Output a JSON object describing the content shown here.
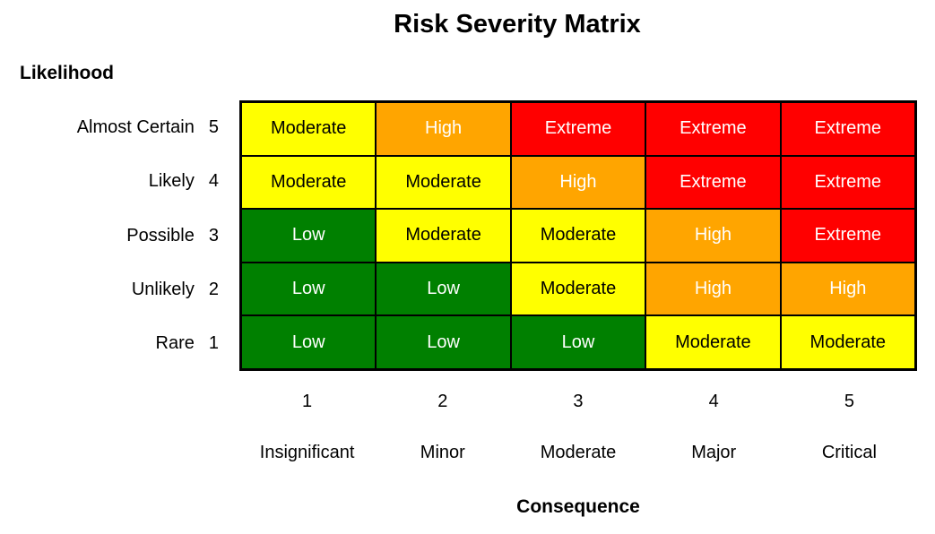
{
  "title": "Risk Severity Matrix",
  "axes": {
    "y_label": "Likelihood",
    "x_label": "Consequence"
  },
  "chart_data": {
    "type": "heatmap",
    "title": "Risk Severity Matrix",
    "xlabel": "Consequence",
    "ylabel": "Likelihood",
    "rows": [
      {
        "likelihood": "Almost Certain",
        "value": 5,
        "cells": [
          "Moderate",
          "High",
          "Extreme",
          "Extreme",
          "Extreme"
        ]
      },
      {
        "likelihood": "Likely",
        "value": 4,
        "cells": [
          "Moderate",
          "Moderate",
          "High",
          "Extreme",
          "Extreme"
        ]
      },
      {
        "likelihood": "Possible",
        "value": 3,
        "cells": [
          "Low",
          "Moderate",
          "Moderate",
          "High",
          "Extreme"
        ]
      },
      {
        "likelihood": "Unlikely",
        "value": 2,
        "cells": [
          "Low",
          "Low",
          "Moderate",
          "High",
          "High"
        ]
      },
      {
        "likelihood": "Rare",
        "value": 1,
        "cells": [
          "Low",
          "Low",
          "Low",
          "Moderate",
          "Moderate"
        ]
      }
    ],
    "columns": [
      {
        "value": 1,
        "label": "Insignificant"
      },
      {
        "value": 2,
        "label": "Minor"
      },
      {
        "value": 3,
        "label": "Moderate"
      },
      {
        "value": 4,
        "label": "Major"
      },
      {
        "value": 5,
        "label": "Critical"
      }
    ],
    "severity_colors": {
      "Low": {
        "bg": "#008000",
        "text": "#FFFFFF"
      },
      "Moderate": {
        "bg": "#FFFF00",
        "text": "#000000"
      },
      "High": {
        "bg": "#FFA500",
        "text": "#FFFFFF"
      },
      "Extreme": {
        "bg": "#FF0000",
        "text": "#FFFFFF"
      }
    },
    "border_color": "#000000",
    "legend_position": "none",
    "grid": true
  }
}
